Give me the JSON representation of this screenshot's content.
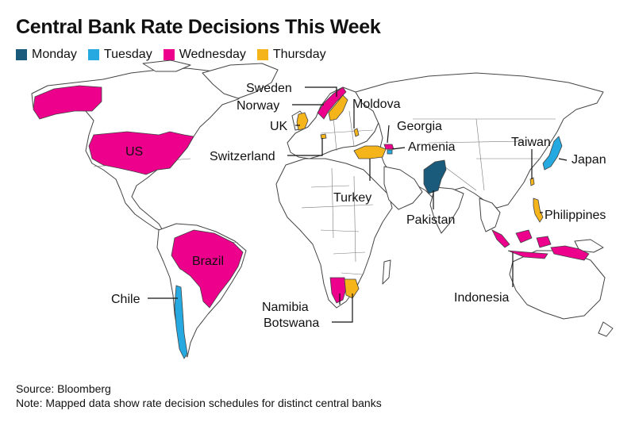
{
  "title": "Central Bank Rate Decisions This Week",
  "legend": [
    {
      "label": "Monday",
      "color": "#1a5a7a"
    },
    {
      "label": "Tuesday",
      "color": "#26a9e0"
    },
    {
      "label": "Wednesday",
      "color": "#ec008c"
    },
    {
      "label": "Thursday",
      "color": "#f5b51a"
    }
  ],
  "countries": [
    {
      "name": "US",
      "day": "Wednesday"
    },
    {
      "name": "Brazil",
      "day": "Wednesday"
    },
    {
      "name": "Chile",
      "day": "Tuesday"
    },
    {
      "name": "Sweden",
      "day": "Thursday"
    },
    {
      "name": "Norway",
      "day": "Wednesday"
    },
    {
      "name": "UK",
      "day": "Thursday"
    },
    {
      "name": "Switzerland",
      "day": "Thursday"
    },
    {
      "name": "Moldova",
      "day": "Thursday"
    },
    {
      "name": "Georgia",
      "day": "Wednesday"
    },
    {
      "name": "Armenia",
      "day": "Tuesday"
    },
    {
      "name": "Turkey",
      "day": "Thursday"
    },
    {
      "name": "Pakistan",
      "day": "Monday"
    },
    {
      "name": "Taiwan",
      "day": "Thursday"
    },
    {
      "name": "Japan",
      "day": "Tuesday"
    },
    {
      "name": "Philippines",
      "day": "Thursday"
    },
    {
      "name": "Indonesia",
      "day": "Wednesday"
    },
    {
      "name": "Namibia",
      "day": "Wednesday"
    },
    {
      "name": "Botswana",
      "day": "Thursday"
    }
  ],
  "footer": {
    "source": "Source: Bloomberg",
    "note": "Note: Mapped data show rate decision schedules for distinct central banks"
  }
}
